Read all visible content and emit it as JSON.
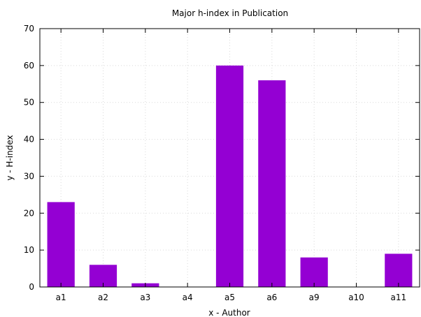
{
  "chart_data": {
    "type": "bar",
    "title": "Major h-index in Publication",
    "xlabel": "x - Author",
    "ylabel": "y - H-index",
    "categories": [
      "a1",
      "a2",
      "a3",
      "a4",
      "a5",
      "a6",
      "a9",
      "a10",
      "a11"
    ],
    "values": [
      23,
      6,
      1,
      0,
      60,
      56,
      8,
      0,
      9
    ],
    "ylim": [
      0,
      70
    ],
    "yticks": [
      0,
      10,
      20,
      30,
      40,
      50,
      60,
      70
    ],
    "grid": true,
    "bar_color": "#9400d3"
  }
}
